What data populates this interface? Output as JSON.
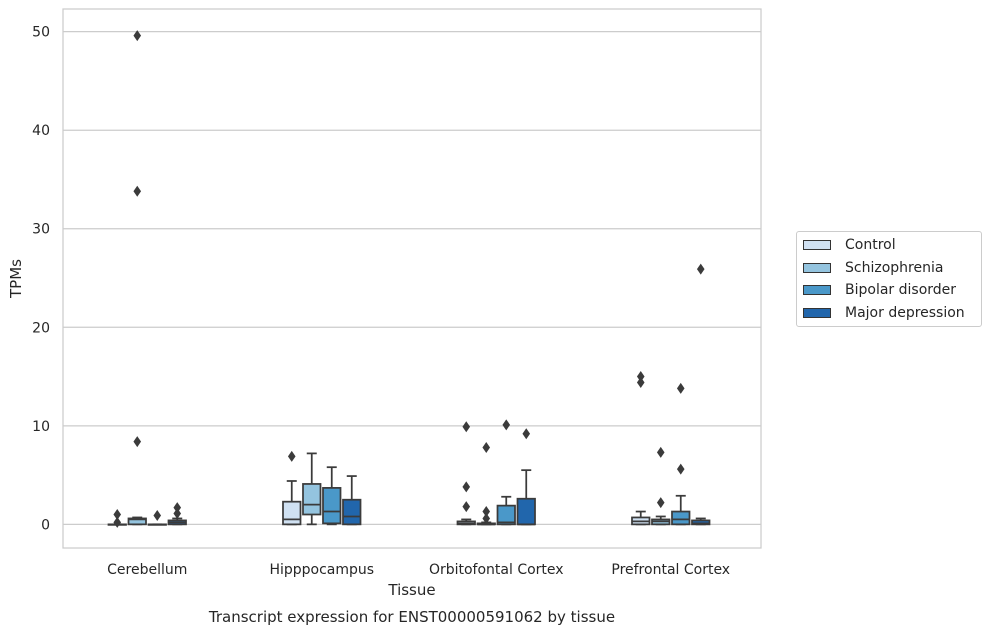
{
  "chart_data": {
    "type": "box",
    "caption": "Transcript expression for ENST00000591062 by tissue",
    "xlabel": "Tissue",
    "ylabel": "TPMs",
    "ylim": [
      -2.4,
      52.3
    ],
    "yticks": [
      0,
      10,
      20,
      30,
      40,
      50
    ],
    "grid": "horizontal",
    "legend_position": "right",
    "categories": [
      "Cerebellum",
      "Hipppocampus",
      "Orbitofontal Cortex",
      "Prefrontal Cortex"
    ],
    "series": [
      {
        "name": "Control",
        "color": "#d0e1f2",
        "boxes": [
          {
            "q1": 0,
            "median": 0,
            "q3": 0,
            "whisker_low": 0,
            "whisker_high": 0,
            "outliers": [
              1.0,
              0.2
            ]
          },
          {
            "q1": 0,
            "median": 0.5,
            "q3": 2.3,
            "whisker_low": 0,
            "whisker_high": 4.4,
            "outliers": [
              6.9
            ]
          },
          {
            "q1": 0,
            "median": 0.1,
            "q3": 0.3,
            "whisker_low": 0,
            "whisker_high": 0.5,
            "outliers": [
              9.9,
              3.8,
              1.8
            ]
          },
          {
            "q1": 0,
            "median": 0.3,
            "q3": 0.7,
            "whisker_low": 0,
            "whisker_high": 1.3,
            "outliers": [
              15.0,
              14.4
            ]
          }
        ]
      },
      {
        "name": "Schizophrenia",
        "color": "#94c4df",
        "boxes": [
          {
            "q1": 0,
            "median": 0.5,
            "q3": 0.6,
            "whisker_low": 0,
            "whisker_high": 0.7,
            "outliers": [
              49.6,
              33.8,
              8.4
            ]
          },
          {
            "q1": 1.0,
            "median": 2.0,
            "q3": 4.1,
            "whisker_low": 0,
            "whisker_high": 7.2,
            "outliers": []
          },
          {
            "q1": 0,
            "median": 0,
            "q3": 0.1,
            "whisker_low": 0,
            "whisker_high": 0.2,
            "outliers": [
              7.8,
              1.3,
              0.6
            ]
          },
          {
            "q1": 0,
            "median": 0.3,
            "q3": 0.5,
            "whisker_low": 0,
            "whisker_high": 0.8,
            "outliers": [
              7.3,
              2.2
            ]
          }
        ]
      },
      {
        "name": "Bipolar disorder",
        "color": "#4a98c9",
        "boxes": [
          {
            "q1": 0,
            "median": 0,
            "q3": 0,
            "whisker_low": 0,
            "whisker_high": 0,
            "outliers": [
              0.9
            ]
          },
          {
            "q1": 0.1,
            "median": 1.3,
            "q3": 3.7,
            "whisker_low": 0,
            "whisker_high": 5.8,
            "outliers": []
          },
          {
            "q1": 0,
            "median": 0.2,
            "q3": 1.9,
            "whisker_low": 0,
            "whisker_high": 2.8,
            "outliers": [
              10.1
            ]
          },
          {
            "q1": 0,
            "median": 0.5,
            "q3": 1.3,
            "whisker_low": 0,
            "whisker_high": 2.9,
            "outliers": [
              13.8,
              5.6
            ]
          }
        ]
      },
      {
        "name": "Major depression",
        "color": "#2166ac",
        "boxes": [
          {
            "q1": 0,
            "median": 0.2,
            "q3": 0.4,
            "whisker_low": 0,
            "whisker_high": 0.6,
            "outliers": [
              1.7,
              1.1
            ]
          },
          {
            "q1": 0,
            "median": 0.8,
            "q3": 2.5,
            "whisker_low": 0,
            "whisker_high": 4.9,
            "outliers": []
          },
          {
            "q1": 0,
            "median": 0,
            "q3": 2.6,
            "whisker_low": 0,
            "whisker_high": 5.5,
            "outliers": [
              9.2
            ]
          },
          {
            "q1": 0,
            "median": 0.1,
            "q3": 0.4,
            "whisker_low": 0,
            "whisker_high": 0.6,
            "outliers": [
              25.9
            ]
          }
        ]
      }
    ]
  }
}
